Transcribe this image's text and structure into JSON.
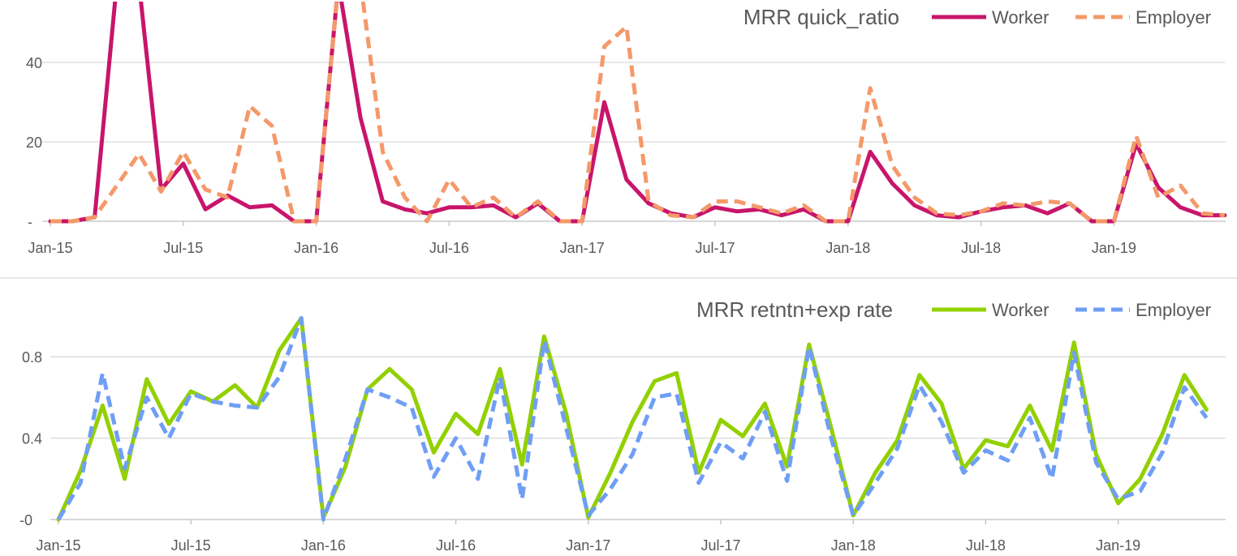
{
  "chart_data": [
    {
      "id": "top",
      "type": "line",
      "title": "MRR quick_ratio",
      "xlabel": "",
      "ylabel": "",
      "y_ticks": [
        {
          "value": 0,
          "label": "-"
        },
        {
          "value": 20,
          "label": "20"
        },
        {
          "value": 40,
          "label": "40"
        }
      ],
      "ylim": [
        0,
        50
      ],
      "x_tick_labels": [
        {
          "index": 0,
          "label": "Jan-15"
        },
        {
          "index": 6,
          "label": "Jul-15"
        },
        {
          "index": 12,
          "label": "Jan-16"
        },
        {
          "index": 18,
          "label": "Jul-16"
        },
        {
          "index": 24,
          "label": "Jan-17"
        },
        {
          "index": 30,
          "label": "Jul-17"
        },
        {
          "index": 36,
          "label": "Jan-18"
        },
        {
          "index": 42,
          "label": "Jul-18"
        },
        {
          "index": 48,
          "label": "Jan-19"
        }
      ],
      "grid": true,
      "legend_position": "top-right",
      "series": [
        {
          "name": "Worker",
          "color": "#c8156b",
          "dashed": false,
          "values": [
            0,
            0,
            1,
            60,
            60,
            8,
            14.5,
            3,
            6.5,
            3.5,
            4,
            0,
            0,
            60,
            26,
            5,
            3,
            2,
            3.5,
            3.5,
            4,
            1,
            4.5,
            0,
            0,
            30,
            10.5,
            4.5,
            2,
            1,
            3.5,
            2.5,
            3,
            1.5,
            3,
            0,
            0,
            17.5,
            9.5,
            4,
            1.5,
            1,
            2.5,
            3.5,
            4,
            2,
            4.5,
            0,
            0,
            19.5,
            8.5,
            3.5,
            1.5,
            1.5
          ]
        },
        {
          "name": "Employer",
          "color": "#f4996a",
          "dashed": true,
          "values": [
            0,
            0,
            1,
            9,
            17,
            7.5,
            17.5,
            8,
            6,
            29,
            24,
            0,
            0,
            60,
            60,
            17.5,
            6,
            0,
            10.5,
            3.5,
            6,
            1,
            5,
            0,
            0,
            44,
            49,
            5,
            1.5,
            1,
            5,
            5,
            3.5,
            2,
            4,
            0,
            0,
            33.5,
            14,
            6,
            2,
            1.5,
            2.5,
            4.5,
            4,
            5,
            4.5,
            0,
            0,
            21.5,
            6,
            9,
            2,
            1.5
          ]
        }
      ]
    },
    {
      "id": "bottom",
      "type": "line",
      "title": "MRR retntn+exp rate",
      "xlabel": "",
      "ylabel": "",
      "y_ticks": [
        {
          "value": 0,
          "label": "-0"
        },
        {
          "value": 0.4,
          "label": "0.4"
        },
        {
          "value": 0.8,
          "label": "0.8"
        }
      ],
      "ylim": [
        0,
        1
      ],
      "x_tick_labels": [
        {
          "index": 0,
          "label": "Jan-15"
        },
        {
          "index": 6,
          "label": "Jul-15"
        },
        {
          "index": 12,
          "label": "Jan-16"
        },
        {
          "index": 18,
          "label": "Jul-16"
        },
        {
          "index": 24,
          "label": "Jan-17"
        },
        {
          "index": 30,
          "label": "Jul-17"
        },
        {
          "index": 36,
          "label": "Jan-18"
        },
        {
          "index": 42,
          "label": "Jul-18"
        },
        {
          "index": 48,
          "label": "Jan-19"
        }
      ],
      "grid": true,
      "legend_position": "top-right",
      "series": [
        {
          "name": "Worker",
          "color": "#92d000",
          "dashed": false,
          "values": [
            0,
            0.24,
            0.56,
            0.2,
            0.69,
            0.47,
            0.63,
            0.58,
            0.66,
            0.55,
            0.83,
            0.99,
            0.01,
            0.26,
            0.64,
            0.74,
            0.64,
            0.33,
            0.52,
            0.42,
            0.74,
            0.27,
            0.9,
            0.52,
            0.01,
            0.23,
            0.48,
            0.68,
            0.72,
            0.23,
            0.49,
            0.41,
            0.57,
            0.26,
            0.86,
            0.45,
            0.02,
            0.23,
            0.39,
            0.71,
            0.57,
            0.25,
            0.39,
            0.36,
            0.56,
            0.34,
            0.87,
            0.32,
            0.08,
            0.2,
            0.42,
            0.71,
            0.54
          ]
        },
        {
          "name": "Employer",
          "color": "#6f9ef5",
          "dashed": true,
          "values": [
            0,
            0.18,
            0.72,
            0.25,
            0.6,
            0.4,
            0.62,
            0.58,
            0.56,
            0.55,
            0.7,
            0.99,
            0,
            0.3,
            0.64,
            0.6,
            0.55,
            0.21,
            0.4,
            0.2,
            0.7,
            0.1,
            0.88,
            0.45,
            0.02,
            0.15,
            0.32,
            0.6,
            0.62,
            0.18,
            0.38,
            0.3,
            0.53,
            0.19,
            0.85,
            0.4,
            0.02,
            0.18,
            0.35,
            0.66,
            0.48,
            0.23,
            0.34,
            0.29,
            0.5,
            0.2,
            0.82,
            0.28,
            0.1,
            0.14,
            0.33,
            0.65,
            0.5
          ]
        }
      ]
    }
  ]
}
